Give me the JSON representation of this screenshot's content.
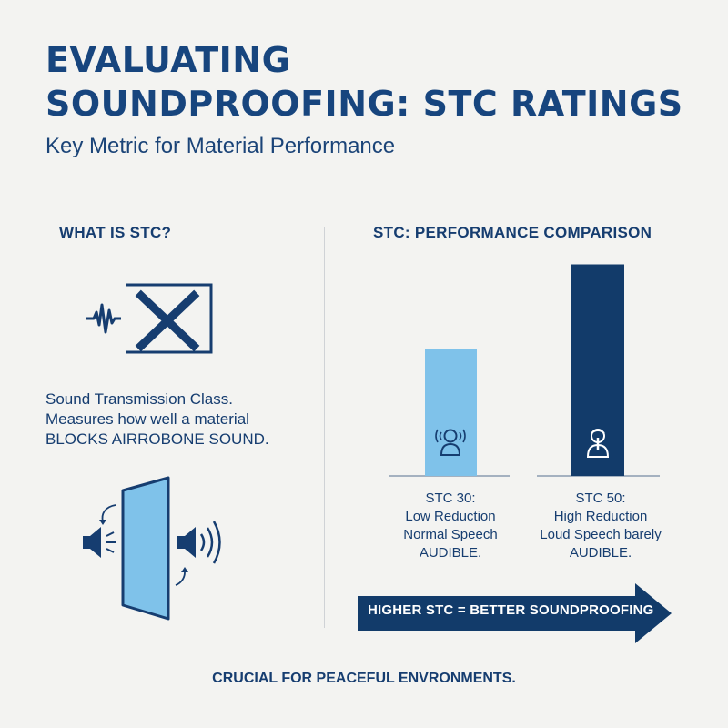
{
  "title": {
    "line1": "EVALUATING",
    "line2": "SOUNDPROOFING: STC RATINGS"
  },
  "subtitle": "Key Metric for Material Performance",
  "left": {
    "heading": "WHAT IS STC?",
    "description": {
      "line1": "Sound Transmission Class.",
      "line2": "Measures how well a material",
      "line3": "BLOCKS AIRROBONE SOUND."
    },
    "icons": [
      "sound-blocked-icon",
      "speaker-wall-icon"
    ]
  },
  "right": {
    "heading": "STC: PERFORMANCE COMPARISON",
    "bars": [
      {
        "stc": 30,
        "label1": "STC 30:",
        "label2": "Low Reduction",
        "label3": "Normal Speech",
        "label4": "AUDIBLE.",
        "color": "#7fc2ea",
        "icon": "person-hearing-icon"
      },
      {
        "stc": 50,
        "label1": "STC 50:",
        "label2": "High Reduction",
        "label3": "Loud Speech barely",
        "label4": "AUDIBLE.",
        "color": "#123b6a",
        "icon": "person-quiet-icon"
      }
    ],
    "arrow_text": "HIGHER STC = BETTER SOUNDPROOFING"
  },
  "footer": "CRUCIAL FOR PEACEFUL ENVRONMENTS.",
  "colors": {
    "background": "#f3f3f1",
    "navy": "#123b6a",
    "light_blue": "#7fc2ea",
    "title": "#17457e"
  }
}
